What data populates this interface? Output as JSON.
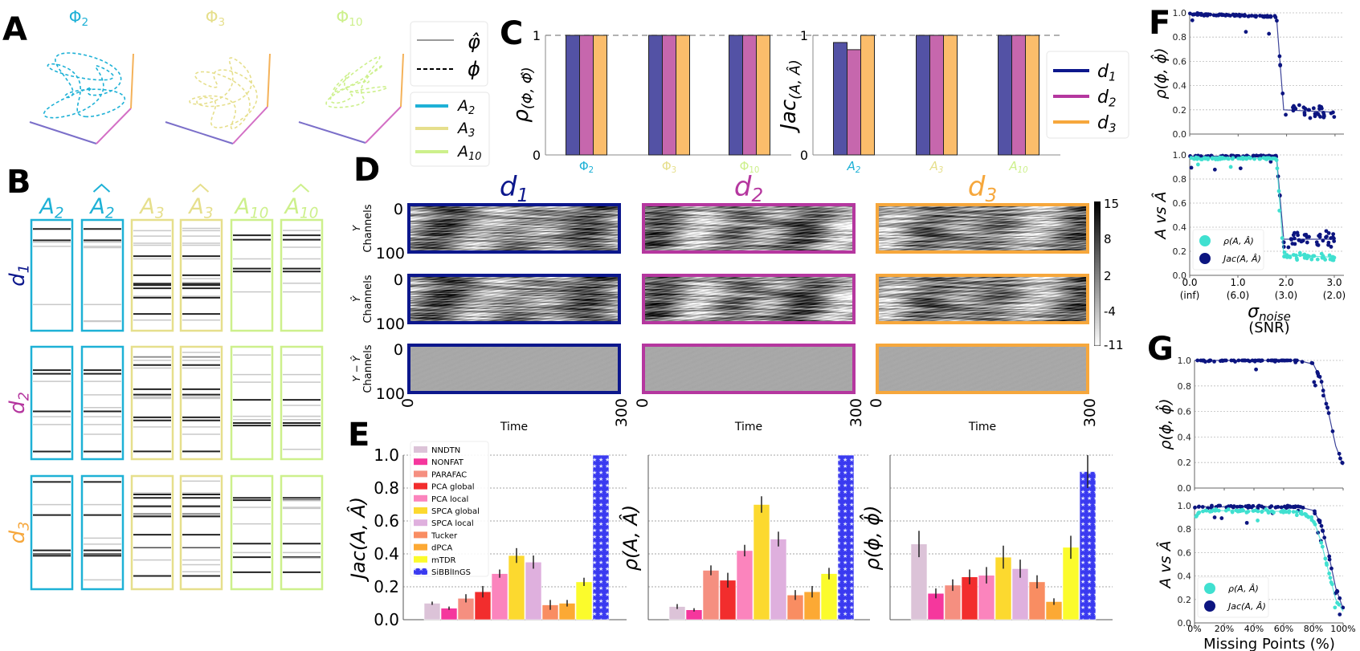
{
  "labels": {
    "A": "A",
    "B": "B",
    "C": "C",
    "D": "D",
    "E": "E",
    "F": "F",
    "G": "G"
  },
  "colors": {
    "A2": "#1eb1d6",
    "A3": "#e6df8c",
    "A10": "#cdf08c",
    "d1": "#0c178c",
    "d2": "#b5379f",
    "d3": "#f6a73c",
    "bar_d1": "#5352a5",
    "bar_d2": "#c667ad",
    "bar_d3": "#fbbd6b",
    "axis_x": "#7b6fc9",
    "axis_y": "#d36fc5",
    "axis_z": "#f4b25a",
    "rho": "#40e0d0",
    "jac": "#0c1580"
  },
  "panel_a": {
    "titles": [
      {
        "base": "Φ",
        "sub": "2"
      },
      {
        "base": "Φ",
        "sub": "3"
      },
      {
        "base": "Φ",
        "sub": "10"
      }
    ],
    "legend_lines": [
      {
        "label": "φ̂",
        "style": "solid"
      },
      {
        "label": "ϕ",
        "style": "dashed"
      }
    ],
    "legend_A": [
      {
        "base": "A",
        "sub": "2"
      },
      {
        "base": "A",
        "sub": "3"
      },
      {
        "base": "A",
        "sub": "10"
      }
    ]
  },
  "panel_b": {
    "headers": [
      {
        "base": "A",
        "sub": "2",
        "hat": false
      },
      {
        "base": "A",
        "sub": "2",
        "hat": true
      },
      {
        "base": "A",
        "sub": "3",
        "hat": false
      },
      {
        "base": "A",
        "sub": "3",
        "hat": true
      },
      {
        "base": "A",
        "sub": "10",
        "hat": false
      },
      {
        "base": "A",
        "sub": "10",
        "hat": true
      }
    ],
    "rows": [
      {
        "base": "d",
        "sub": "1"
      },
      {
        "base": "d",
        "sub": "2"
      },
      {
        "base": "d",
        "sub": "3"
      }
    ]
  },
  "panel_c_legend": [
    {
      "base": "d",
      "sub": "1"
    },
    {
      "base": "d",
      "sub": "2"
    },
    {
      "base": "d",
      "sub": "3"
    }
  ],
  "panel_d": {
    "columns": [
      {
        "base": "d",
        "sub": "1"
      },
      {
        "base": "d",
        "sub": "2"
      },
      {
        "base": "d",
        "sub": "3"
      }
    ],
    "row_labels": [
      {
        "var": "Y",
        "text": "Channels"
      },
      {
        "var": "Ŷ",
        "text": "Channels"
      },
      {
        "var": "Y − Ŷ",
        "text": "Channels"
      }
    ],
    "y_ticks": [
      "0",
      "100"
    ],
    "x_ticks": [
      "0",
      "300"
    ],
    "xlabel": "Time",
    "colorbar_ticks": [
      "15",
      "8",
      "2",
      "-4",
      "-11"
    ]
  },
  "chart_data": [
    {
      "id": "C-left",
      "type": "bar",
      "ylabel": {
        "base": "ρ",
        "sub": "(Φ, Φ̂)"
      },
      "categories": [
        {
          "base": "Φ",
          "sub": "2"
        },
        {
          "base": "Φ",
          "sub": "3"
        },
        {
          "base": "Φ",
          "sub": "10"
        }
      ],
      "series": [
        {
          "name": "d1",
          "values": [
            1,
            1,
            1
          ]
        },
        {
          "name": "d2",
          "values": [
            1,
            1,
            1
          ]
        },
        {
          "name": "d3",
          "values": [
            1,
            1,
            1
          ]
        }
      ],
      "yticks": [
        "0",
        "1"
      ],
      "ylim": [
        0,
        1
      ],
      "reference_line": 1
    },
    {
      "id": "C-right",
      "type": "bar",
      "ylabel": {
        "base": "Jac",
        "sub": "(A, Â)"
      },
      "categories": [
        {
          "base": "A",
          "sub": "2"
        },
        {
          "base": "A",
          "sub": "3"
        },
        {
          "base": "A",
          "sub": "10"
        }
      ],
      "series": [
        {
          "name": "d1",
          "values": [
            0.94,
            1,
            1
          ]
        },
        {
          "name": "d2",
          "values": [
            0.88,
            1,
            1
          ]
        },
        {
          "name": "d3",
          "values": [
            1,
            1,
            1
          ]
        }
      ],
      "yticks": [
        "0",
        "1"
      ],
      "ylim": [
        0,
        1
      ],
      "reference_line": 1,
      "legend": "right"
    },
    {
      "id": "E-jac",
      "type": "bar",
      "ylabel": "Jac(A, Â)",
      "ylim": [
        0,
        1
      ],
      "grid": true,
      "legend": "top-left",
      "yticks": [
        "0.0",
        "0.2",
        "0.4",
        "0.6",
        "0.8",
        "1.0"
      ],
      "categories": [
        "NNDTN",
        "NONFAT",
        "PARAFAC",
        "PCA global",
        "PCA local",
        "SPCA global",
        "SPCA local",
        "Tucker",
        "dPCA",
        "mTDR",
        "SiBBlInGS"
      ],
      "colors": [
        "#dcc3d8",
        "#f5379d",
        "#f58f80",
        "#f22d2d",
        "#fb84bd",
        "#fcd92f",
        "#dfb0de",
        "#f98d62",
        "#fca934",
        "#fbfb2c",
        "#3a3af0"
      ],
      "values": [
        0.1,
        0.07,
        0.13,
        0.17,
        0.28,
        0.39,
        0.35,
        0.09,
        0.1,
        0.23,
        1.0
      ],
      "errors": [
        0.01,
        0.01,
        0.025,
        0.035,
        0.025,
        0.045,
        0.04,
        0.03,
        0.02,
        0.025,
        0
      ]
    },
    {
      "id": "E-rhoA",
      "type": "bar",
      "ylabel": "ρ(A, Â)",
      "ylim": [
        0,
        1
      ],
      "grid": true,
      "yticks": [],
      "values": [
        0.08,
        0.06,
        0.3,
        0.24,
        0.42,
        0.7,
        0.49,
        0.15,
        0.17,
        0.28,
        1.0
      ],
      "errors": [
        0.015,
        0.01,
        0.03,
        0.045,
        0.035,
        0.05,
        0.045,
        0.03,
        0.035,
        0.035,
        0
      ]
    },
    {
      "id": "E-rhoPhi",
      "type": "bar",
      "ylabel": "ρ(ϕ, ϕ̂)",
      "ylim": [
        0,
        1
      ],
      "grid": true,
      "yticks": [],
      "values": [
        0.46,
        0.16,
        0.21,
        0.26,
        0.27,
        0.38,
        0.31,
        0.23,
        0.11,
        0.44,
        0.9
      ],
      "errors": [
        0.08,
        0.03,
        0.035,
        0.045,
        0.05,
        0.07,
        0.055,
        0.04,
        0.02,
        0.07,
        0.1
      ]
    },
    {
      "id": "F-top",
      "type": "scatter",
      "ylabel": "ρ(ϕ, ϕ̂)",
      "xlim": [
        0,
        3.2
      ],
      "ylim": [
        0,
        1
      ],
      "grid": true,
      "yticks": [
        "0.0",
        "0.2",
        "0.4",
        "0.6",
        "0.8",
        "1.0"
      ],
      "series": [
        {
          "color": "#0c1580",
          "x": [
            0,
            1.8,
            1.95,
            3.0
          ],
          "y": [
            0.99,
            0.97,
            0.2,
            0.18
          ],
          "spread_low": 0.06
        }
      ]
    },
    {
      "id": "F-bottom",
      "type": "scatter",
      "ylabel": "A vs Â",
      "xlim": [
        0,
        3.2
      ],
      "ylim": [
        0,
        1
      ],
      "grid": true,
      "yticks": [
        "0.0",
        "0.2",
        "0.4",
        "0.6",
        "0.8",
        "1.0"
      ],
      "xticks": [
        "0.0",
        "1.0",
        "2.0",
        "3.0"
      ],
      "xtick_sub": [
        "(inf)",
        "(6.0)",
        "(3.0)",
        "(2.0)"
      ],
      "xlabel": {
        "base": "σ",
        "sub": "noise"
      },
      "xlabel2": "(SNR)",
      "legend": "bottom-left",
      "series": [
        {
          "name": "ρ(A, Â)",
          "color": "#40e0d0",
          "x": [
            0,
            1.8,
            1.95,
            3.0
          ],
          "y": [
            0.97,
            0.97,
            0.17,
            0.15
          ]
        },
        {
          "name": "Jac(A, Â)",
          "color": "#0c1580",
          "x": [
            0,
            1.8,
            1.95,
            3.0
          ],
          "y": [
            0.99,
            0.99,
            0.3,
            0.3
          ]
        }
      ]
    },
    {
      "id": "G-top",
      "type": "scatter",
      "ylabel": "ρ(ϕ, ϕ̂)",
      "xlim": [
        0,
        100
      ],
      "ylim": [
        0,
        1
      ],
      "grid": true,
      "yticks": [
        "0.0",
        "0.2",
        "0.4",
        "0.6",
        "0.8",
        "1.0"
      ],
      "series": [
        {
          "color": "#0c1580",
          "x": [
            0,
            70,
            80,
            85,
            90,
            95,
            100
          ],
          "y": [
            1,
            1,
            0.97,
            0.85,
            0.6,
            0.33,
            0.18
          ]
        }
      ]
    },
    {
      "id": "G-bottom",
      "type": "scatter",
      "ylabel": "A vs Â",
      "xlim": [
        0,
        100
      ],
      "ylim": [
        0,
        1
      ],
      "grid": true,
      "legend": "bottom-left",
      "yticks": [
        "0.0",
        "0.2",
        "0.4",
        "0.6",
        "0.8",
        "1.0"
      ],
      "xticks": [
        "0%",
        "20%",
        "40%",
        "60%",
        "80%",
        "100%"
      ],
      "xlabel": "Missing Points (%)",
      "series": [
        {
          "name": "ρ(A, Â)",
          "color": "#40e0d0",
          "x": [
            0,
            5,
            70,
            80,
            85,
            90,
            95,
            100
          ],
          "y": [
            0.9,
            0.96,
            0.95,
            0.88,
            0.7,
            0.45,
            0.2,
            0.1
          ]
        },
        {
          "name": "Jac(A, Â)",
          "color": "#0c1580",
          "x": [
            0,
            70,
            80,
            85,
            90,
            95,
            100
          ],
          "y": [
            0.99,
            0.99,
            0.96,
            0.85,
            0.6,
            0.3,
            0.12
          ]
        }
      ]
    }
  ]
}
